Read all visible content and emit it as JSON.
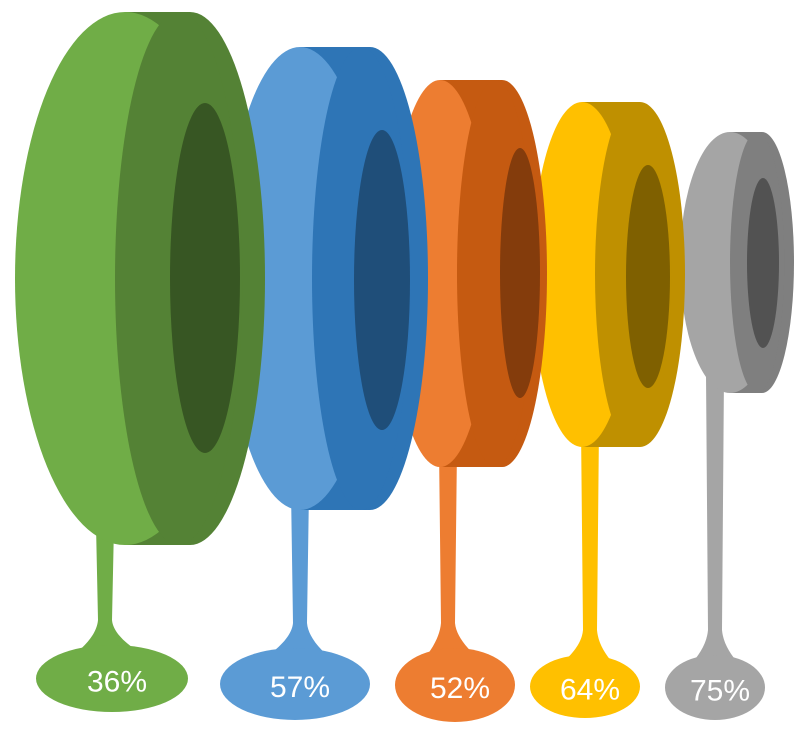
{
  "items": [
    {
      "label": "36%",
      "face": "#70ad47",
      "side": "#548235",
      "hole": "#375623"
    },
    {
      "label": "57%",
      "face": "#5b9bd5",
      "side": "#2e75b6",
      "hole": "#1f4e79"
    },
    {
      "label": "52%",
      "face": "#ed7d31",
      "side": "#c55a11",
      "hole": "#843c0c"
    },
    {
      "label": "64%",
      "face": "#ffc000",
      "side": "#bf9000",
      "hole": "#7f6000"
    },
    {
      "label": "75%",
      "face": "#a5a5a5",
      "side": "#7f7f7f",
      "hole": "#525252"
    }
  ]
}
